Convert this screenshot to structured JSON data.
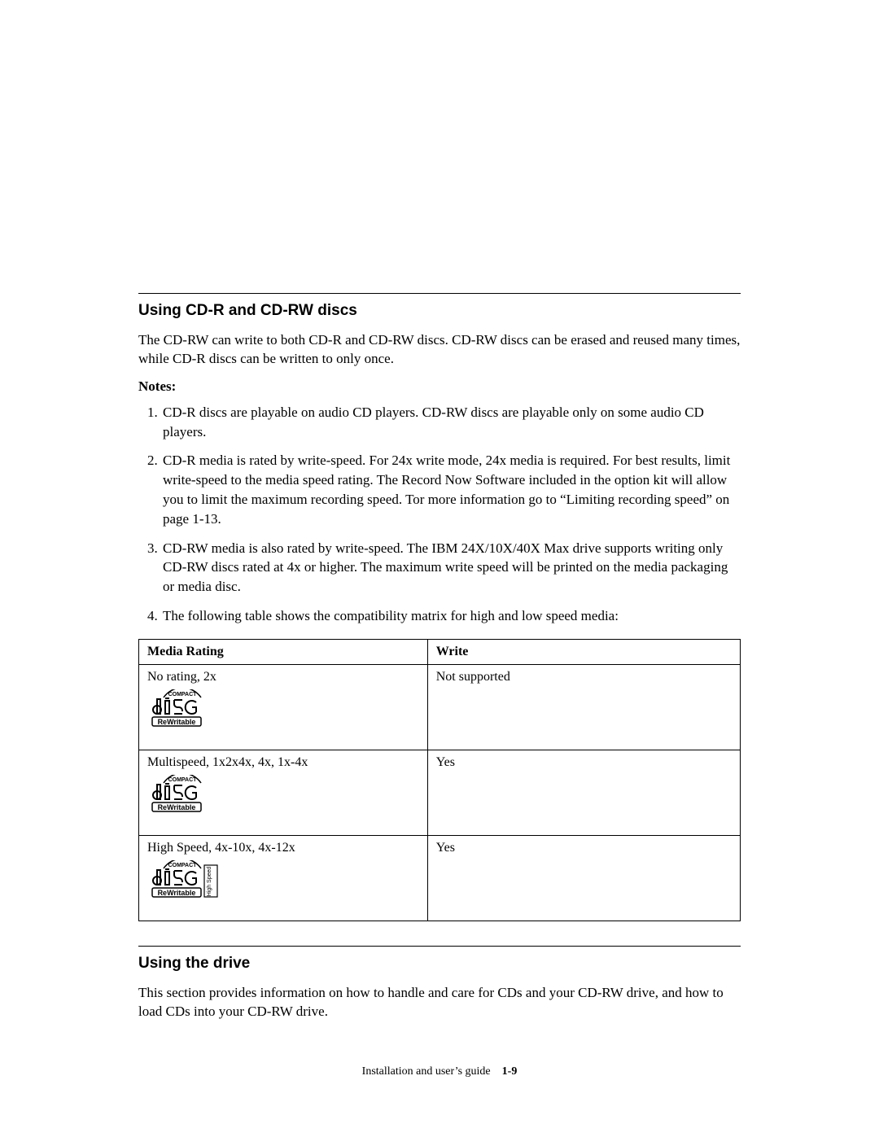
{
  "section1": {
    "title": "Using CD-R and CD-RW discs",
    "intro": "The CD-RW can write to both CD-R and CD-RW discs. CD-RW discs can be erased and reused many times, while CD-R discs can be written to only once.",
    "notes_label": "Notes:",
    "notes": [
      "CD-R discs are playable on audio CD players. CD-RW discs are playable only on some audio CD players.",
      "CD-R media is rated by write-speed. For 24x write mode, 24x media is required. For best results, limit write-speed to the media speed rating. The Record Now Software included in the option kit will allow you to limit the maximum recording speed. Tor more information go to “Limiting recording speed” on page 1-13.",
      "CD-RW media is also rated by write-speed. The IBM 24X/10X/40X Max drive supports writing only CD-RW discs rated at 4x or higher. The maximum write speed will be printed on the media packaging or media disc.",
      "The following table shows the compatibility matrix for high and low speed media:"
    ]
  },
  "table": {
    "headers": {
      "col1": "Media Rating",
      "col2": "Write"
    },
    "rows": [
      {
        "label": "No rating, 2x",
        "write": "Not supported",
        "logo": "std"
      },
      {
        "label": "Multispeed, 1x2x4x, 4x, 1x-4x",
        "write": "Yes",
        "logo": "std"
      },
      {
        "label": "High Speed, 4x-10x, 4x-12x",
        "write": "Yes",
        "logo": "hs"
      }
    ]
  },
  "section2": {
    "title": "Using the drive",
    "body": "This section provides information on how to handle and care for CDs and your CD-RW drive, and how to load CDs into your CD-RW drive."
  },
  "footer": {
    "text": "Installation and user’s guide",
    "page": "1-9"
  },
  "logo": {
    "compact_text": "COMPACT",
    "rewritable_text": "ReWritable",
    "high_speed_text": "High Speed",
    "stroke": "#000000",
    "fill_bg": "#ffffff"
  }
}
